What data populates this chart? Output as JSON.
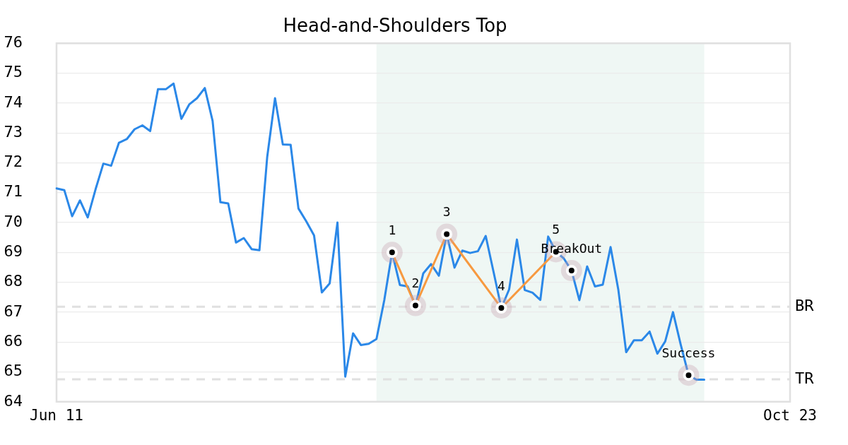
{
  "chart_data": {
    "type": "line",
    "title": "Head-and-Shoulders Top",
    "categories": [
      "Jun 11",
      null,
      null,
      null,
      null,
      null,
      null,
      null,
      null,
      null,
      null,
      null,
      null,
      null,
      null,
      null,
      null,
      null,
      null,
      null,
      null,
      null,
      null,
      null,
      null,
      null,
      null,
      null,
      null,
      null,
      null,
      null,
      null,
      null,
      null,
      null,
      null,
      null,
      null,
      null,
      null,
      null,
      null,
      null,
      null,
      null,
      null,
      null,
      null,
      null,
      null,
      null,
      null,
      null,
      null,
      null,
      null,
      null,
      null,
      null,
      null,
      null,
      null,
      null,
      null,
      null,
      null,
      null,
      null,
      null,
      null,
      null,
      null,
      null,
      null,
      null,
      null,
      null,
      null,
      null,
      null,
      null,
      null,
      null,
      null,
      null,
      null,
      null,
      null,
      null,
      null,
      null,
      null,
      null,
      "Oct 23"
    ],
    "ylim": [
      64,
      76
    ],
    "yticks": [
      64,
      65,
      66,
      67,
      68,
      69,
      70,
      71,
      72,
      73,
      74,
      75,
      76
    ],
    "grid": "y",
    "legend": false,
    "series": [
      {
        "color": "#2b88e8",
        "values": [
          71.14,
          71.08,
          70.21,
          70.74,
          70.17,
          71.11,
          71.97,
          71.9,
          72.67,
          72.79,
          73.12,
          73.25,
          73.06,
          74.46,
          74.46,
          74.65,
          73.47,
          73.95,
          74.16,
          74.5,
          73.4,
          70.68,
          70.64,
          69.33,
          69.48,
          69.11,
          69.07,
          72.2,
          74.16,
          72.61,
          72.6,
          70.47,
          70.04,
          69.57,
          67.66,
          67.96,
          70.0,
          64.84,
          66.29,
          65.9,
          65.94,
          66.1,
          67.4,
          69.0,
          67.91,
          67.86,
          67.22,
          68.3,
          68.61,
          68.22,
          69.61,
          68.49,
          69.06,
          68.98,
          69.04,
          69.55,
          68.35,
          67.14,
          67.76,
          69.43,
          67.74,
          67.65,
          67.41,
          69.53,
          69.02,
          68.8,
          68.39,
          67.4,
          68.53,
          67.86,
          67.92,
          69.18,
          67.74,
          65.66,
          66.06,
          66.06,
          66.35,
          65.61,
          66.02,
          67.0,
          65.9,
          64.89,
          64.74,
          64.74,
          null,
          null,
          null,
          null,
          null,
          null,
          null,
          null,
          null,
          null,
          null
        ]
      },
      {
        "type": "line",
        "color": "#f7993f",
        "values": [
          null,
          null,
          null,
          null,
          null,
          null,
          null,
          null,
          null,
          null,
          null,
          null,
          null,
          null,
          null,
          null,
          null,
          null,
          null,
          null,
          null,
          null,
          null,
          null,
          null,
          null,
          null,
          null,
          null,
          null,
          null,
          null,
          null,
          null,
          null,
          null,
          null,
          null,
          null,
          null,
          null,
          null,
          null,
          69.0,
          null,
          null,
          67.22,
          null,
          null,
          null,
          69.61,
          null,
          null,
          null,
          null,
          null,
          null,
          67.14,
          null,
          null,
          null,
          null,
          null,
          null,
          69.02,
          null,
          null,
          null,
          null,
          null,
          null,
          null,
          null,
          null,
          null,
          null,
          null,
          null,
          null,
          null,
          null,
          null,
          null,
          null,
          null,
          null,
          null,
          null,
          null,
          null,
          null,
          null,
          null,
          null,
          null
        ]
      },
      {
        "type": "scatter",
        "color": "#000000",
        "marker": "circle",
        "values": [
          null,
          null,
          null,
          null,
          null,
          null,
          null,
          null,
          null,
          null,
          null,
          null,
          null,
          null,
          null,
          null,
          null,
          null,
          null,
          null,
          null,
          null,
          null,
          null,
          null,
          null,
          null,
          null,
          null,
          null,
          null,
          null,
          null,
          null,
          null,
          null,
          null,
          null,
          null,
          null,
          null,
          null,
          null,
          69.0,
          null,
          null,
          67.22,
          null,
          null,
          null,
          69.61,
          null,
          null,
          null,
          null,
          null,
          null,
          67.14,
          null,
          null,
          null,
          null,
          null,
          null,
          69.02,
          null,
          68.39,
          null,
          null,
          null,
          null,
          null,
          null,
          null,
          null,
          null,
          null,
          null,
          null,
          null,
          null,
          64.89,
          null,
          null,
          null,
          null,
          null,
          null,
          null,
          null,
          null,
          null,
          null,
          null,
          null
        ]
      }
    ],
    "ref_lines": [
      {
        "axis": "y",
        "value": 67.18,
        "label": "BR",
        "color": "#e0e0e0",
        "line_style": "dashed"
      },
      {
        "axis": "y",
        "value": 64.75,
        "label": "TR",
        "color": "#e0e0e0",
        "line_style": "dashed"
      }
    ],
    "annotations": [
      "1",
      "2",
      "3",
      "4",
      "5",
      "BreakOut",
      "Success"
    ]
  }
}
